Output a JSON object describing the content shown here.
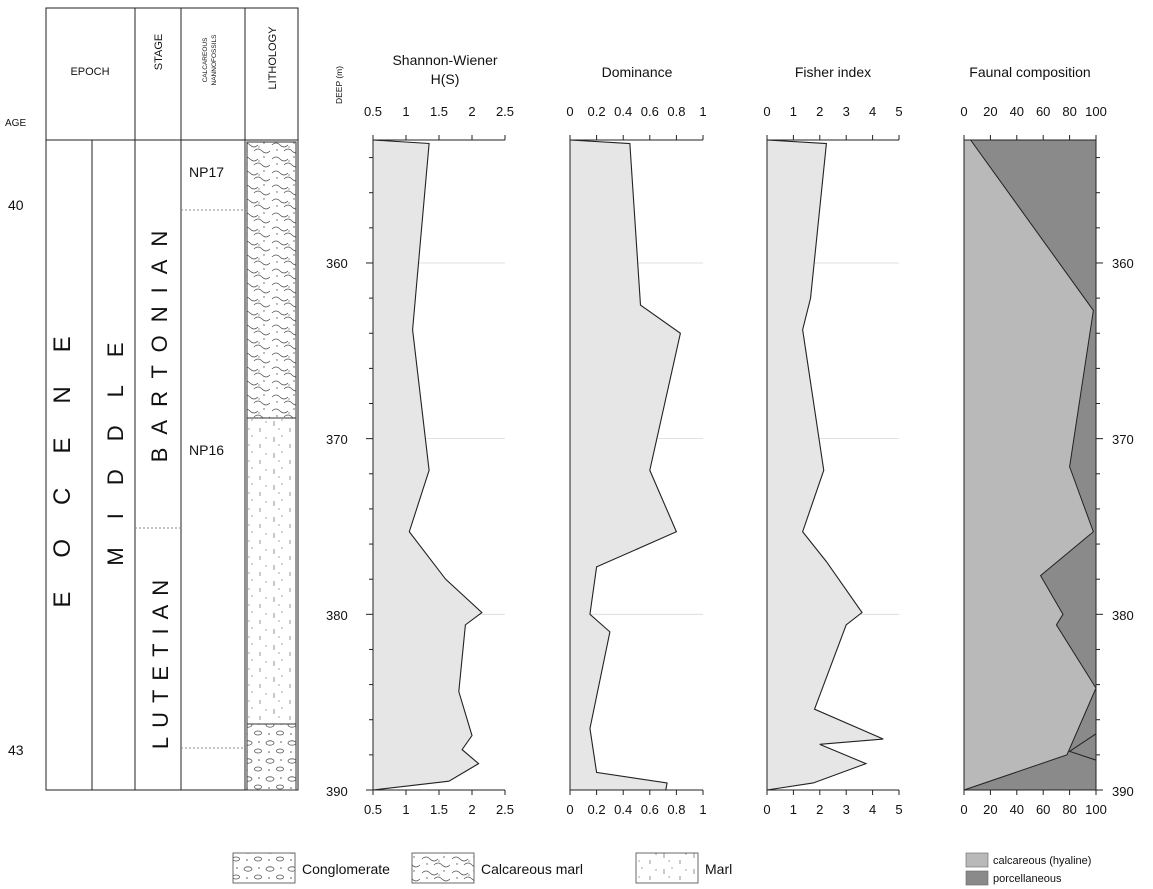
{
  "strat": {
    "headers": {
      "age": "AGE",
      "epoch": "EPOCH",
      "stage": "STAGE",
      "nanno_line1": "CALCAREOUS",
      "nanno_line2": "NANNOFOSSILS",
      "lithology": "LITHOLOGY",
      "depth": "DEEP (m)"
    },
    "ages": [
      "40",
      "43"
    ],
    "epoch_text": "EOCENE",
    "subepoch_text": "MIDDLE",
    "stages": [
      "BARTONIAN",
      "LUTETIAN"
    ],
    "nanno_zones": [
      "NP17",
      "NP16"
    ],
    "depth_ticks": [
      "360",
      "370",
      "380",
      "390"
    ]
  },
  "legend": {
    "conglomerate": "Conglomerate",
    "calcareous_marl": "Calcareous marl",
    "marl": "Marl",
    "hyaline": "calcareous (hyaline)",
    "porcellaneous": "porcellaneous"
  },
  "colors": {
    "area_fill": "#e6e6e6",
    "hyaline": "#b9b9b9",
    "porcellaneous": "#8a8a8a",
    "grid": "#d8d8d8"
  },
  "chart_data": [
    {
      "type": "area",
      "title": "Shannon-Wiener",
      "subtitle": "H(S)",
      "ylabel": "DEEP (m)",
      "xlim": [
        0.5,
        2.5
      ],
      "ylim": [
        353,
        390
      ],
      "xticks": [
        "0.5",
        "1",
        "1.5",
        "2",
        "2.5"
      ],
      "y": [
        353,
        353.2,
        363.8,
        371.8,
        375.3,
        378,
        379.9,
        380.6,
        384.4,
        386.9,
        387.7,
        388.5,
        389.5,
        390
      ],
      "x": [
        0.5,
        1.35,
        1.1,
        1.35,
        1.05,
        1.6,
        2.15,
        1.9,
        1.8,
        2.0,
        1.85,
        2.1,
        1.65,
        0.5
      ]
    },
    {
      "type": "area",
      "title": "Dominance",
      "ylabel": "DEEP (m)",
      "xlim": [
        0,
        1
      ],
      "ylim": [
        353,
        390
      ],
      "xticks": [
        "0",
        "0.2",
        "0.4",
        "0.6",
        "0.8",
        "1"
      ],
      "y": [
        353,
        353.2,
        362.4,
        364,
        371.8,
        375.3,
        377.3,
        380,
        381,
        386.5,
        389,
        389.6,
        390
      ],
      "x": [
        0,
        0.45,
        0.53,
        0.83,
        0.6,
        0.8,
        0.2,
        0.15,
        0.3,
        0.15,
        0.2,
        0.73,
        0.72
      ]
    },
    {
      "type": "area",
      "title": "Fisher index",
      "ylabel": "DEEP (m)",
      "xlim": [
        0,
        5
      ],
      "ylim": [
        353,
        390
      ],
      "xticks": [
        "0",
        "1",
        "2",
        "3",
        "4",
        "5"
      ],
      "y": [
        353,
        353.2,
        362,
        363.8,
        371.8,
        375.3,
        377,
        379.9,
        380.6,
        385.4,
        387.1,
        387.4,
        388.5,
        389.6,
        390
      ],
      "x": [
        0,
        2.25,
        1.65,
        1.35,
        2.15,
        1.35,
        2.25,
        3.6,
        3.0,
        1.8,
        4.4,
        2.0,
        3.75,
        1.75,
        0
      ]
    },
    {
      "type": "area",
      "title": "Faunal composition",
      "ylabel": "DEEP (m)",
      "xlim": [
        0,
        100
      ],
      "ylim": [
        353,
        390
      ],
      "xticks": [
        "0",
        "20",
        "40",
        "60",
        "80",
        "100"
      ],
      "y": [
        353,
        362.7,
        371.6,
        375.3,
        377.8,
        380,
        380.6,
        384.2,
        388
      ],
      "x": [
        5,
        98,
        80,
        98,
        58,
        75,
        70,
        100,
        78
      ],
      "series": [
        {
          "name": "calcareous (hyaline)",
          "color": "#b9b9b9"
        },
        {
          "name": "porcellaneous",
          "color": "#8a8a8a"
        }
      ],
      "porcellaneous_lens": {
        "y": [
          386.8,
          387.8,
          388.3
        ],
        "x": [
          100,
          80,
          100
        ]
      }
    }
  ]
}
